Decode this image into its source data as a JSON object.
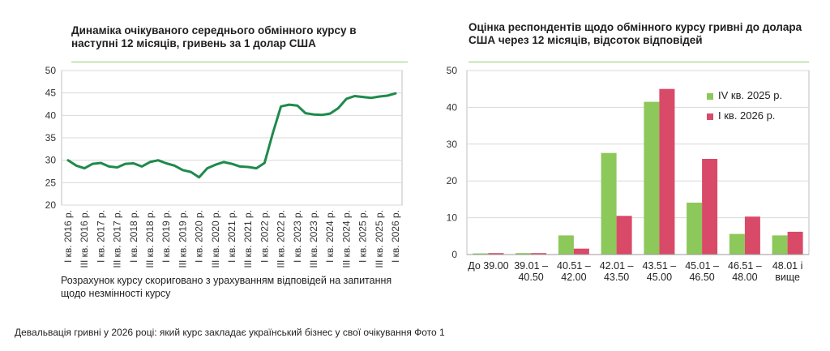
{
  "left_chart": {
    "title": "Динаміка очікуваного середнього обмінного курсу в наступні 12 місяців, гривень за 1 долар США",
    "note": "Розрахунок курсу скориговано з урахуванням відповідей на запитання щодо незмінності курсу"
  },
  "right_chart": {
    "title": "Оцінка респондентів щодо обмінного курсу гривні до долара США через 12 місяців, відсоток відповідей"
  },
  "caption": "Девальвація гривні у 2026 році: який курс закладає український бізнес у свої очікування Фото 1",
  "colors": {
    "line": "#1e8a4c",
    "green_bar": "#8cc85a",
    "red_bar": "#d94a68",
    "accent_rule": "#8fce6e"
  },
  "chart_data": [
    {
      "type": "line",
      "title": "Динаміка очікуваного середнього обмінного курсу в наступні 12 місяців, гривень за 1 долар США",
      "ylim": [
        20,
        50
      ],
      "yticks": [
        20,
        25,
        30,
        35,
        40,
        45,
        50
      ],
      "x_tick_labels": [
        "I кв. 2016 р.",
        "III кв. 2016 р.",
        "I кв. 2017 р.",
        "III кв. 2017 р.",
        "I кв. 2018 р.",
        "III кв. 2018 р.",
        "I кв. 2019 р.",
        "III кв. 2019 р.",
        "I кв. 2020 р.",
        "III кв. 2020 р.",
        "I кв. 2021 р.",
        "III кв. 2021 р.",
        "I кв. 2022 р.",
        "III кв. 2022 р.",
        "I кв. 2023 р.",
        "III кв. 2023 р.",
        "I кв. 2024 р.",
        "III кв. 2024 р.",
        "I кв. 2025 р.",
        "III кв. 2025 р.",
        "I кв. 2026 р."
      ],
      "series": [
        {
          "values": [
            30.0,
            28.8,
            28.2,
            29.2,
            29.4,
            28.6,
            28.4,
            29.2,
            29.3,
            28.6,
            29.6,
            30.0,
            29.3,
            28.8,
            27.8,
            27.4,
            26.2,
            28.2,
            29.0,
            29.6,
            29.2,
            28.6,
            28.5,
            28.2,
            29.4,
            36.0,
            42.0,
            42.4,
            42.2,
            40.5,
            40.2,
            40.1,
            40.4,
            41.6,
            43.7,
            44.3,
            44.1,
            43.9,
            44.2,
            44.4,
            44.9
          ]
        }
      ],
      "grid": "horizontal"
    },
    {
      "type": "bar",
      "title": "Оцінка респондентів щодо обмінного курсу гривні до долара США через 12 місяців, відсоток відповідей",
      "ylim": [
        0,
        50
      ],
      "yticks": [
        0,
        10,
        20,
        30,
        40,
        50
      ],
      "categories": [
        [
          "До 39.00"
        ],
        [
          "39.01 –",
          "40.50"
        ],
        [
          "40.51 –",
          "42.00"
        ],
        [
          "42.01 –",
          "43.50"
        ],
        [
          "43.51 –",
          "45.00"
        ],
        [
          "45.01 –",
          "46.50"
        ],
        [
          "46.51 –",
          "48.00"
        ],
        [
          "48.01 і",
          "вище"
        ]
      ],
      "series": [
        {
          "name": "IV кв. 2025 р.",
          "values": [
            0.3,
            0.4,
            5.2,
            27.6,
            41.5,
            14.1,
            5.6,
            5.2
          ]
        },
        {
          "name": "I кв. 2026 р.",
          "values": [
            0.4,
            0.4,
            1.6,
            10.5,
            45.0,
            26.0,
            10.3,
            6.2
          ]
        }
      ],
      "legend": "top-right",
      "grid": "horizontal"
    }
  ]
}
